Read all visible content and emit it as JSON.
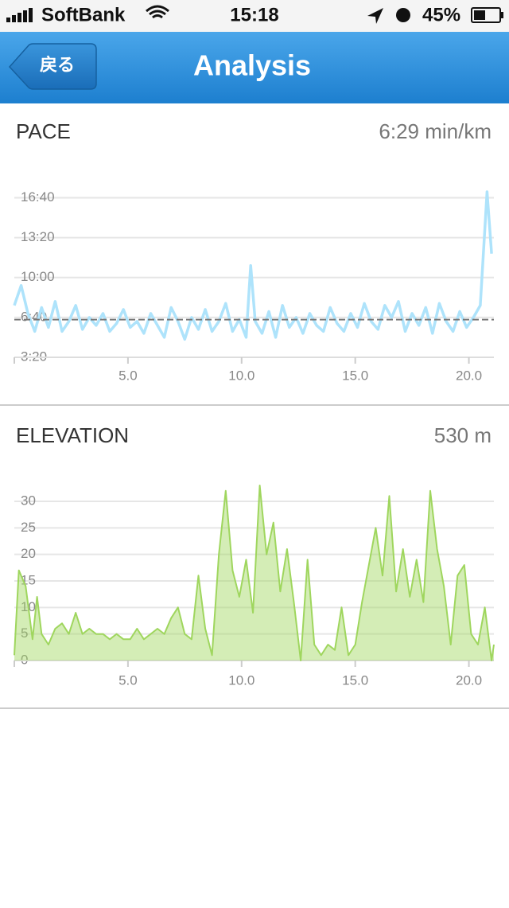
{
  "status_bar": {
    "carrier": "SoftBank",
    "time": "15:18",
    "battery": "45%"
  },
  "nav": {
    "back": "戻る",
    "title": "Analysis"
  },
  "chart_data": [
    {
      "type": "line",
      "title": "PACE",
      "average": {
        "value": 389,
        "label": "6:29 min/km"
      },
      "color": "#aee3fb",
      "grid": true,
      "x": [
        0,
        0.3,
        0.6,
        0.9,
        1.2,
        1.5,
        1.8,
        2.1,
        2.4,
        2.7,
        3.0,
        3.3,
        3.6,
        3.9,
        4.2,
        4.5,
        4.8,
        5.1,
        5.4,
        5.7,
        6.0,
        6.3,
        6.6,
        6.9,
        7.2,
        7.5,
        7.8,
        8.1,
        8.4,
        8.7,
        9.0,
        9.3,
        9.6,
        9.9,
        10.2,
        10.4,
        10.6,
        10.9,
        11.2,
        11.5,
        11.8,
        12.1,
        12.4,
        12.7,
        13.0,
        13.3,
        13.6,
        13.9,
        14.2,
        14.5,
        14.8,
        15.1,
        15.4,
        15.7,
        16.0,
        16.3,
        16.6,
        16.9,
        17.2,
        17.5,
        17.8,
        18.1,
        18.4,
        18.7,
        19.0,
        19.3,
        19.6,
        19.9,
        20.2,
        20.5,
        20.8,
        21.0
      ],
      "values": [
        460,
        560,
        420,
        330,
        450,
        350,
        480,
        330,
        380,
        460,
        340,
        400,
        360,
        420,
        330,
        370,
        440,
        350,
        380,
        320,
        420,
        360,
        300,
        450,
        380,
        290,
        400,
        340,
        440,
        330,
        380,
        470,
        330,
        390,
        300,
        660,
        380,
        320,
        430,
        300,
        460,
        350,
        400,
        320,
        420,
        360,
        330,
        450,
        370,
        330,
        420,
        350,
        470,
        380,
        340,
        460,
        400,
        480,
        330,
        420,
        360,
        450,
        320,
        470,
        380,
        330,
        430,
        350,
        400,
        460,
        1030,
        720
      ],
      "xlim": [
        0,
        21.1
      ],
      "ylim": [
        200,
        1050
      ],
      "xticks": [
        {
          "value": 5,
          "label": "5.0"
        },
        {
          "value": 10,
          "label": "10.0"
        },
        {
          "value": 15,
          "label": "15.0"
        },
        {
          "value": 20,
          "label": "20.0"
        }
      ],
      "yticks": [
        {
          "value": 200,
          "label": "3:20"
        },
        {
          "value": 400,
          "label": "6:40"
        },
        {
          "value": 600,
          "label": "10:00"
        },
        {
          "value": 800,
          "label": "13:20"
        },
        {
          "value": 1000,
          "label": "16:40"
        }
      ]
    },
    {
      "type": "area",
      "title": "ELEVATION",
      "summary": "530 m",
      "color": "#9fd65e",
      "grid": true,
      "x": [
        0,
        0.2,
        0.5,
        0.8,
        1.0,
        1.2,
        1.5,
        1.8,
        2.1,
        2.4,
        2.7,
        3.0,
        3.3,
        3.6,
        3.9,
        4.2,
        4.5,
        4.8,
        5.1,
        5.4,
        5.7,
        6.0,
        6.3,
        6.6,
        6.9,
        7.2,
        7.5,
        7.8,
        8.1,
        8.4,
        8.7,
        9.0,
        9.3,
        9.6,
        9.9,
        10.2,
        10.5,
        10.8,
        11.1,
        11.4,
        11.7,
        12.0,
        12.3,
        12.6,
        12.9,
        13.2,
        13.5,
        13.8,
        14.1,
        14.4,
        14.7,
        15.0,
        15.3,
        15.6,
        15.9,
        16.2,
        16.5,
        16.8,
        17.1,
        17.4,
        17.7,
        18.0,
        18.3,
        18.6,
        18.9,
        19.2,
        19.5,
        19.8,
        20.1,
        20.4,
        20.7,
        21.0,
        21.1
      ],
      "values": [
        1,
        17,
        14,
        4,
        12,
        5,
        3,
        6,
        7,
        5,
        9,
        5,
        6,
        5,
        5,
        4,
        5,
        4,
        4,
        6,
        4,
        5,
        6,
        5,
        8,
        10,
        5,
        4,
        16,
        6,
        1,
        20,
        32,
        17,
        12,
        19,
        9,
        33,
        20,
        26,
        13,
        21,
        11,
        0,
        19,
        3,
        1,
        3,
        2,
        10,
        1,
        3,
        11,
        18,
        25,
        16,
        31,
        13,
        21,
        12,
        19,
        11,
        32,
        21,
        14,
        3,
        16,
        18,
        5,
        3,
        10,
        0,
        3
      ],
      "xlim": [
        0,
        21.1
      ],
      "ylim": [
        0,
        33
      ],
      "xticks": [
        {
          "value": 5,
          "label": "5.0"
        },
        {
          "value": 10,
          "label": "10.0"
        },
        {
          "value": 15,
          "label": "15.0"
        },
        {
          "value": 20,
          "label": "20.0"
        }
      ],
      "yticks": [
        0,
        5,
        10,
        15,
        20,
        25,
        30
      ]
    }
  ]
}
